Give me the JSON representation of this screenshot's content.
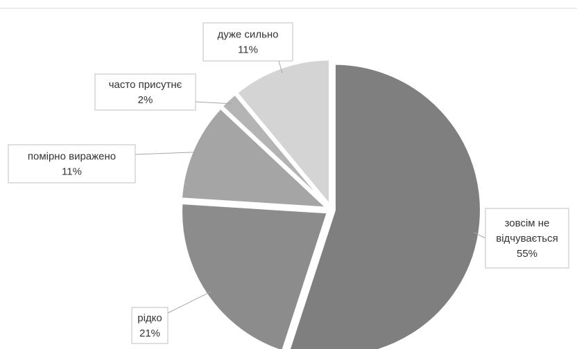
{
  "chart_data": {
    "type": "pie",
    "title": "",
    "slices": [
      {
        "label": "зовсім не відчувається",
        "lines": [
          "зовсім не",
          "відчувається"
        ],
        "value": 55,
        "value_label": "55%",
        "color": "#7f7f7f"
      },
      {
        "label": "рідко",
        "lines": [
          "рідко"
        ],
        "value": 21,
        "value_label": "21%",
        "color": "#8c8c8c"
      },
      {
        "label": "помірно виражено",
        "lines": [
          "помірно виражено"
        ],
        "value": 11,
        "value_label": "11%",
        "color": "#a5a5a5"
      },
      {
        "label": "часто присутнє",
        "lines": [
          "часто присутнє"
        ],
        "value": 2,
        "value_label": "2%",
        "color": "#b4b4b4"
      },
      {
        "label": "дуже сильно",
        "lines": [
          "дуже сильно"
        ],
        "value": 11,
        "value_label": "11%",
        "color": "#d4d4d4"
      }
    ],
    "start": "top, clockwise",
    "exploded": true,
    "legend": "none"
  }
}
